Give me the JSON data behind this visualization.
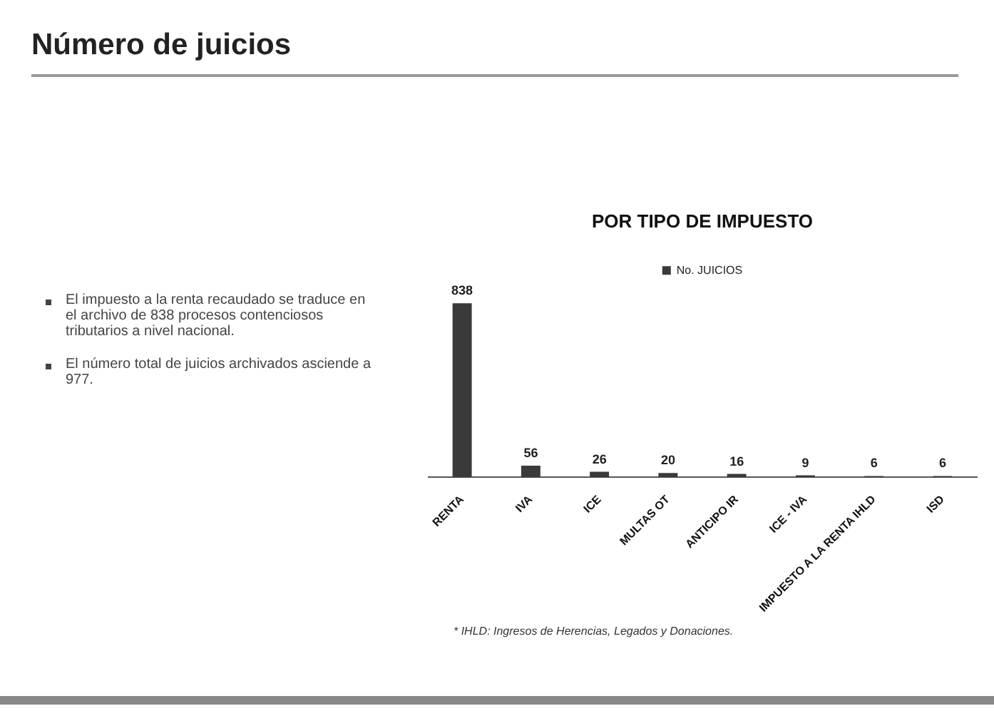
{
  "chart_data": {
    "type": "bar",
    "title": "Número de juicios",
    "subtitle": "POR TIPO DE IMPUESTO",
    "categories": [
      "RENTA",
      "IVA",
      "ICE",
      "MULTAS OT",
      "ANTICIPO IR",
      "ICE - IVA",
      "IMPUESTO A LA RENTA IHLD",
      "ISD"
    ],
    "series": [
      {
        "name": "No. JUICIOS",
        "color": "#3a3a3a",
        "values": [
          838,
          56,
          26,
          20,
          16,
          9,
          6,
          6
        ]
      }
    ],
    "data_labels": true,
    "legend": "top",
    "annotations": [
      "El impuesto a la renta recaudado se traduce en el archivo de 838 procesos contenciosos tributarios a nivel nacional.",
      "El número total de juicios archivados asciende a 977.",
      "* IHLD: Ingresos de Herencias, Legados y Donaciones."
    ]
  }
}
